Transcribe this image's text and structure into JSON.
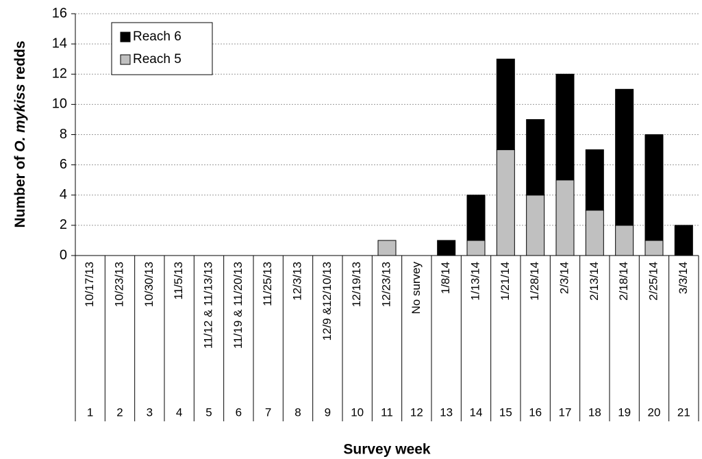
{
  "chart_data": {
    "type": "stacked_bar",
    "ylabel": [
      "Number of ",
      "O. mykiss",
      " redds"
    ],
    "xlabel": "Survey week",
    "categories": [
      "1",
      "2",
      "3",
      "4",
      "5",
      "6",
      "7",
      "8",
      "9",
      "10",
      "11",
      "12",
      "13",
      "14",
      "15",
      "16",
      "17",
      "18",
      "19",
      "20",
      "21"
    ],
    "dates": [
      "10/17/13",
      "10/23/13",
      "10/30/13",
      "11/5/13",
      "11/12 & 11/13/13",
      "11/19 & 11/20/13",
      "11/25/13",
      "12/3/13",
      "12/9 &12/10/13",
      "12/19/13",
      "12/23/13",
      "No survey",
      "1/8/14",
      "1/13/14",
      "1/21/14",
      "1/28/14",
      "2/3/14",
      "2/13/14",
      "2/18/14",
      "2/25/14",
      "3/3/14"
    ],
    "series": [
      {
        "name": "Reach 5",
        "color": "#c0c0c0",
        "values": [
          0,
          0,
          0,
          0,
          0,
          0,
          0,
          0,
          0,
          0,
          1,
          0,
          0,
          1,
          7,
          4,
          5,
          3,
          2,
          1,
          0
        ]
      },
      {
        "name": "Reach 6",
        "color": "#000000",
        "values": [
          0,
          0,
          0,
          0,
          0,
          0,
          0,
          0,
          0,
          0,
          0,
          0,
          1,
          3,
          6,
          5,
          7,
          4,
          9,
          7,
          2
        ]
      }
    ],
    "ylim": [
      0,
      16
    ],
    "yticks": [
      0,
      2,
      4,
      6,
      8,
      10,
      12,
      14,
      16
    ],
    "grid": true,
    "legend": "upper left"
  }
}
